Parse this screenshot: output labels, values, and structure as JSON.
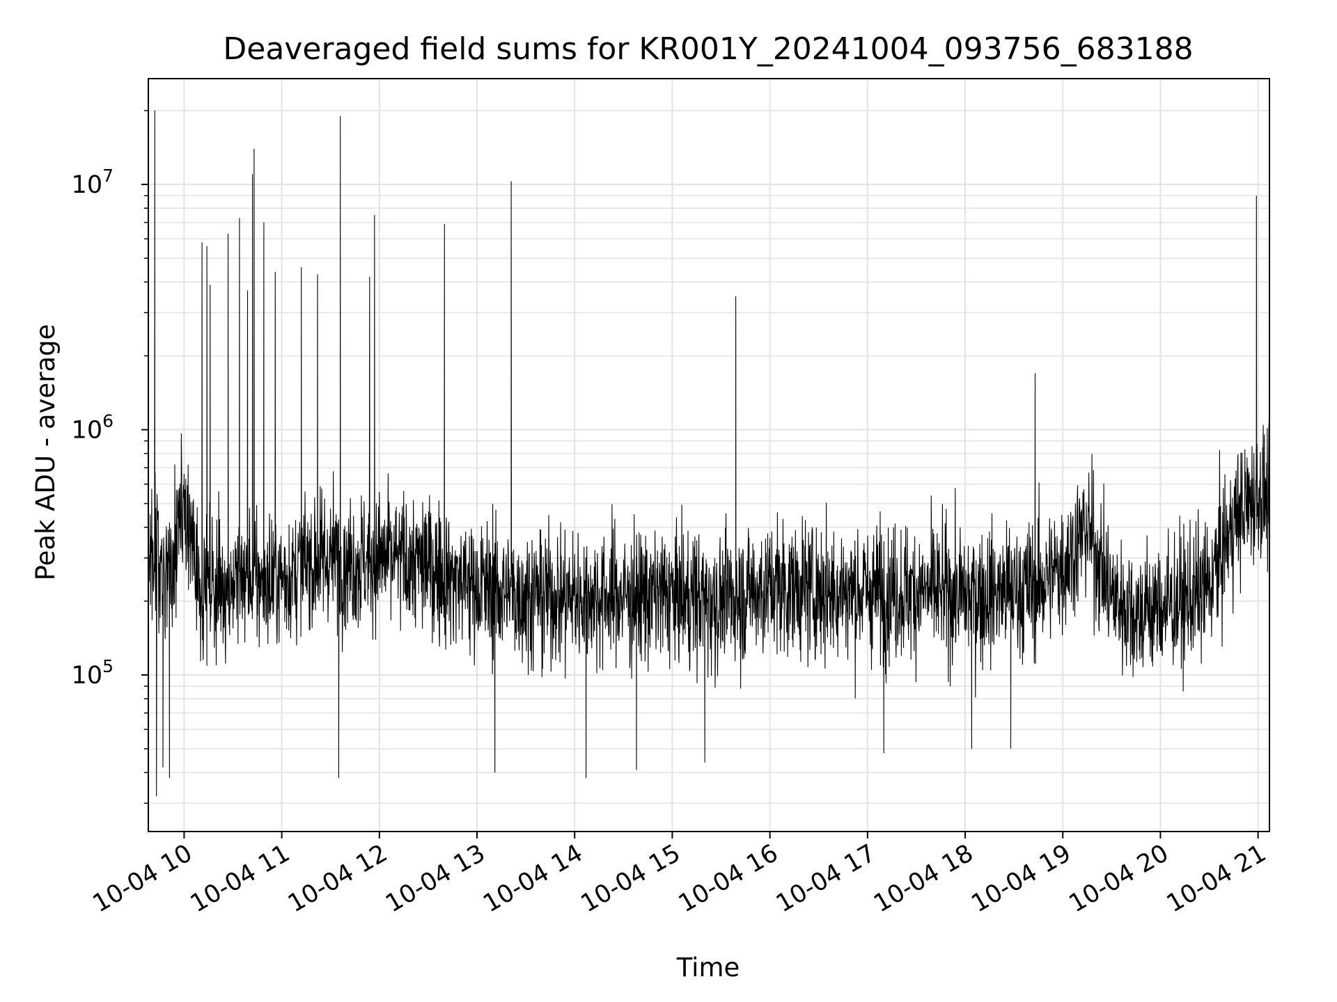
{
  "chart_data": {
    "type": "line",
    "title": "Deaveraged field sums for KR001Y_20241004_093756_683188",
    "xlabel": "Time",
    "ylabel": "Peak ADU - average",
    "x_axis": {
      "type": "time",
      "range": [
        "2024-10-04 09:38",
        "2024-10-04 21:07"
      ],
      "ticks": [
        "10-04 10",
        "10-04 11",
        "10-04 12",
        "10-04 13",
        "10-04 14",
        "10-04 15",
        "10-04 16",
        "10-04 17",
        "10-04 18",
        "10-04 19",
        "10-04 20",
        "10-04 21"
      ]
    },
    "y_axis": {
      "scale": "log",
      "range": [
        23000,
        27000000
      ],
      "ticks": [
        {
          "base": "10",
          "exp": "5",
          "value": 100000
        },
        {
          "base": "10",
          "exp": "6",
          "value": 1000000
        },
        {
          "base": "10",
          "exp": "7",
          "value": 10000000
        }
      ]
    },
    "grid": "on",
    "line_color": "#000000",
    "grid_color": "#e3e3e3",
    "series": [
      {
        "x": [
          "2024-10-04 09:38",
          "2024-10-04 09:45",
          "2024-10-04 09:52",
          "2024-10-04 10:00",
          "2024-10-04 10:10",
          "2024-10-04 10:20",
          "2024-10-04 10:30",
          "2024-10-04 10:40",
          "2024-10-04 10:50",
          "2024-10-04 11:00",
          "2024-10-04 11:15",
          "2024-10-04 11:30",
          "2024-10-04 11:45",
          "2024-10-04 12:00",
          "2024-10-04 12:15",
          "2024-10-04 12:30",
          "2024-10-04 12:45",
          "2024-10-04 13:00",
          "2024-10-04 13:30",
          "2024-10-04 14:00",
          "2024-10-04 14:30",
          "2024-10-04 15:00",
          "2024-10-04 15:30",
          "2024-10-04 16:00",
          "2024-10-04 16:30",
          "2024-10-04 17:00",
          "2024-10-04 17:30",
          "2024-10-04 18:00",
          "2024-10-04 18:30",
          "2024-10-04 18:45",
          "2024-10-04 19:00",
          "2024-10-04 19:15",
          "2024-10-04 19:30",
          "2024-10-04 19:45",
          "2024-10-04 20:00",
          "2024-10-04 20:15",
          "2024-10-04 20:30",
          "2024-10-04 20:45",
          "2024-10-04 21:00",
          "2024-10-04 21:07"
        ],
        "y": [
          350000,
          300000,
          260000,
          480000,
          240000,
          230000,
          240000,
          250000,
          240000,
          250000,
          280000,
          300000,
          290000,
          300000,
          290000,
          280000,
          250000,
          230000,
          210000,
          210000,
          210000,
          210000,
          200000,
          230000,
          220000,
          220000,
          220000,
          210000,
          220000,
          230000,
          280000,
          400000,
          210000,
          180000,
          190000,
          200000,
          230000,
          420000,
          560000,
          500000
        ]
      }
    ],
    "spikes": [
      {
        "x": "2024-10-04 09:42",
        "y": 20000000
      },
      {
        "x": "2024-10-04 10:11",
        "y": 5800000
      },
      {
        "x": "2024-10-04 10:14",
        "y": 5600000
      },
      {
        "x": "2024-10-04 10:16",
        "y": 3900000
      },
      {
        "x": "2024-10-04 10:27",
        "y": 6300000
      },
      {
        "x": "2024-10-04 10:34",
        "y": 7300000
      },
      {
        "x": "2024-10-04 10:39",
        "y": 3700000
      },
      {
        "x": "2024-10-04 10:42",
        "y": 11000000
      },
      {
        "x": "2024-10-04 10:43",
        "y": 14000000
      },
      {
        "x": "2024-10-04 10:49",
        "y": 7000000
      },
      {
        "x": "2024-10-04 10:56",
        "y": 4400000
      },
      {
        "x": "2024-10-04 11:12",
        "y": 4600000
      },
      {
        "x": "2024-10-04 11:22",
        "y": 4300000
      },
      {
        "x": "2024-10-04 11:36",
        "y": 19000000
      },
      {
        "x": "2024-10-04 11:54",
        "y": 4200000
      },
      {
        "x": "2024-10-04 11:57",
        "y": 7500000
      },
      {
        "x": "2024-10-04 12:40",
        "y": 6900000
      },
      {
        "x": "2024-10-04 13:21",
        "y": 10300000
      },
      {
        "x": "2024-10-04 15:39",
        "y": 3500000
      },
      {
        "x": "2024-10-04 18:43",
        "y": 1700000
      },
      {
        "x": "2024-10-04 20:59",
        "y": 9000000
      }
    ],
    "dips": [
      {
        "x": "2024-10-04 09:43",
        "y": 32000
      },
      {
        "x": "2024-10-04 09:47",
        "y": 42000
      },
      {
        "x": "2024-10-04 09:51",
        "y": 38000
      },
      {
        "x": "2024-10-04 11:35",
        "y": 38000
      },
      {
        "x": "2024-10-04 13:11",
        "y": 40000
      },
      {
        "x": "2024-10-04 14:07",
        "y": 38000
      },
      {
        "x": "2024-10-04 14:38",
        "y": 41000
      },
      {
        "x": "2024-10-04 15:20",
        "y": 44000
      },
      {
        "x": "2024-10-04 17:10",
        "y": 48000
      },
      {
        "x": "2024-10-04 18:04",
        "y": 50000
      },
      {
        "x": "2024-10-04 18:28",
        "y": 50000
      }
    ]
  }
}
